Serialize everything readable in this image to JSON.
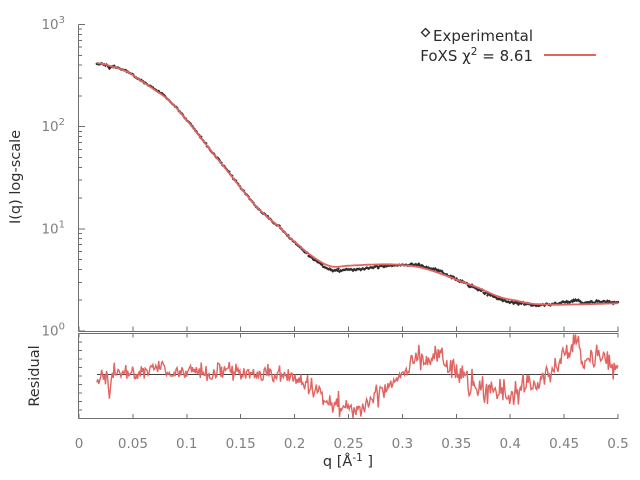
{
  "figure": {
    "background": "#ffffff"
  },
  "legend": {
    "experimental_label": "Experimental",
    "foxs_prefix": "FoXS χ",
    "foxs_sup": "2",
    "foxs_suffix": " = 8.61"
  },
  "axes": {
    "ylabel": "I(q) log-scale",
    "residual_label": "Residual",
    "xlabel_prefix": "q [Å",
    "xlabel_sup": "-1",
    "xlabel_suffix": " ]",
    "x_tick_values": [
      0,
      0.05,
      0.1,
      0.15,
      0.2,
      0.25,
      0.3,
      0.35,
      0.4,
      0.45,
      0.5
    ],
    "x_tick_labels": [
      "0",
      "0.05",
      "0.1",
      "0.15",
      "0.2",
      "0.25",
      "0.3",
      "0.35",
      "0.4",
      "0.45",
      "0.5"
    ],
    "y_tick_exponents": [
      0,
      1,
      2,
      3
    ]
  },
  "colors": {
    "fit": "#e06461",
    "experimental": "#2e2e2e",
    "axis": "#6f6f6f",
    "tick_text": "#7f7f7f",
    "label_text": "#2f2f2f",
    "baseline": "#404040"
  },
  "chart_data": {
    "type": "line",
    "xlabel": "q [Å^-1]",
    "x_range": [
      0,
      0.5
    ],
    "panels": [
      {
        "name": "main",
        "ylabel": "I(q) log-scale",
        "yscale": "log",
        "ylim": [
          1,
          1000
        ],
        "legend_position": "top-right",
        "series": [
          {
            "name": "Experimental",
            "type": "scatter",
            "marker": "diamond",
            "color": "#2e2e2e",
            "note": "dense noisy points tracking the fit curve; offset from fit follows residual trace"
          },
          {
            "name": "FoXS χ2 = 8.61",
            "type": "line",
            "color": "#e06461",
            "chi2": 8.61,
            "q": [
              0.0165,
              0.03,
              0.045,
              0.057,
              0.07,
              0.085,
              0.104,
              0.12,
              0.135,
              0.148,
              0.165,
              0.187,
              0.196,
              0.215,
              0.233,
              0.25,
              0.27,
              0.29,
              0.31,
              0.32,
              0.335,
              0.351,
              0.37,
              0.39,
              0.405,
              0.42,
              0.44,
              0.46,
              0.48,
              0.5
            ],
            "I": [
              420,
              390,
              344,
              284,
              229,
              174,
              103,
              63,
              40,
              26.7,
              16.2,
              10.3,
              8.05,
              5.52,
              4.31,
              4.36,
              4.46,
              4.49,
              4.31,
              4.1,
              3.65,
              3.15,
              2.66,
              2.16,
              1.99,
              1.85,
              1.81,
              1.82,
              1.84,
              1.87
            ]
          }
        ]
      },
      {
        "name": "residual",
        "ylabel": "Residual",
        "yscale": "linear",
        "baseline": 0,
        "series": [
          {
            "name": "residual-trace",
            "type": "line",
            "color": "#e06461",
            "q": [
              0.0165,
              0.022,
              0.026,
              0.028,
              0.031,
              0.04,
              0.05,
              0.06,
              0.075,
              0.09,
              0.105,
              0.12,
              0.135,
              0.15,
              0.165,
              0.18,
              0.195,
              0.21,
              0.225,
              0.245,
              0.258,
              0.27,
              0.285,
              0.3,
              0.312,
              0.325,
              0.335,
              0.345,
              0.36,
              0.375,
              0.39,
              0.4,
              0.415,
              0.43,
              0.44,
              0.45,
              0.462,
              0.47,
              0.478,
              0.486,
              0.493,
              0.5
            ],
            "value": [
              -0.1,
              0.02,
              0,
              -0.6,
              0.02,
              0.05,
              0,
              0.1,
              0.15,
              0.02,
              0.1,
              0,
              0.1,
              0.05,
              -0.05,
              0.02,
              -0.08,
              -0.22,
              -0.45,
              -0.75,
              -0.85,
              -0.6,
              -0.28,
              0.05,
              0.42,
              0.35,
              0.45,
              0.15,
              -0.15,
              -0.45,
              -0.35,
              -0.45,
              -0.28,
              -0.12,
              0.1,
              0.45,
              0.72,
              0.28,
              0.38,
              0.4,
              0.18,
              0.08
            ]
          }
        ]
      }
    ],
    "q_points": {
      "start": 0.0165,
      "end": 0.5,
      "count": 540
    },
    "noise": {
      "seed": 42,
      "sigma_min": 0.085,
      "sigma_max": 0.16,
      "log_offset_per_residual": 0.05
    }
  }
}
